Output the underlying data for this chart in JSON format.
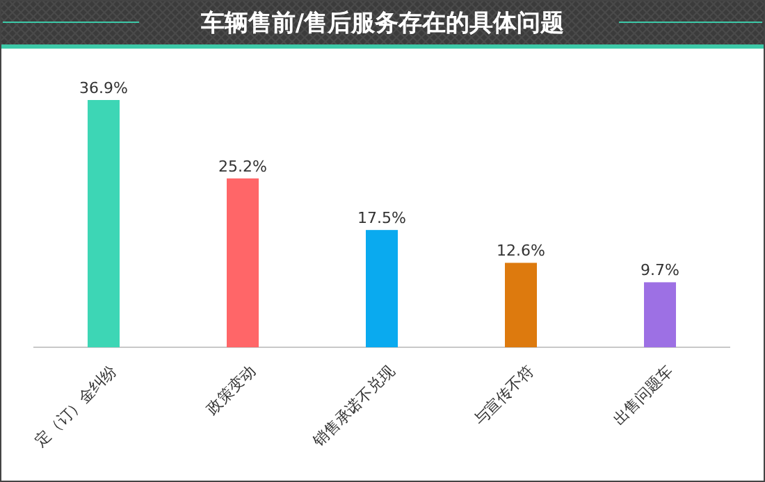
{
  "chart_data": {
    "type": "bar",
    "title": "车辆售前/售后服务存在的具体问题",
    "categories": [
      "定（订）金纠纷",
      "政策变动",
      "销售承诺不兑现",
      "与宣传不符",
      "出售问题车"
    ],
    "values": [
      36.9,
      25.2,
      17.5,
      12.6,
      9.7
    ],
    "colors": [
      "#3dd6b5",
      "#ff6668",
      "#0aaaef",
      "#dd7a0e",
      "#9d70e4"
    ],
    "value_labels": [
      "36.9%",
      "25.2%",
      "17.5%",
      "12.6%",
      "9.7%"
    ],
    "data_labels": true
  }
}
